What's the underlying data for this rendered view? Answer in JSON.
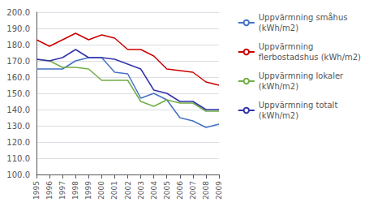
{
  "chart_data": {
    "type": "line",
    "categories": [
      "1995",
      "1996",
      "1997",
      "1998",
      "1999",
      "2000",
      "2001",
      "2002",
      "2003",
      "2004",
      "2005",
      "2006",
      "2007",
      "2008",
      "2009"
    ],
    "series": [
      {
        "name": "Uppvärmning småhus\n(kWh/m2)",
        "color": "#4472C4",
        "values": [
          165,
          165,
          165,
          170,
          172,
          172,
          163,
          162,
          147,
          150,
          146,
          135,
          133,
          129,
          131
        ]
      },
      {
        "name": "Uppvärmning\nflerbostadshus (kWh/m2)",
        "color": "#CC0000",
        "values": [
          183,
          179,
          183,
          187,
          183,
          186,
          184,
          177,
          177,
          173,
          165,
          164,
          163,
          157,
          155
        ]
      },
      {
        "name": "Uppvärmning lokaler\n(kWh/m2)",
        "color": "#70AD47",
        "values": [
          171,
          170,
          166,
          166,
          165,
          158,
          158,
          158,
          145,
          142,
          146,
          144,
          144,
          139,
          139
        ]
      },
      {
        "name": "Uppvärmning totalt\n(kWh/m2)",
        "color": "#3333AA",
        "values": [
          171,
          170,
          172,
          177,
          172,
          172,
          171,
          168,
          165,
          152,
          150,
          145,
          145,
          140,
          140
        ]
      }
    ],
    "ylim": [
      100.0,
      200.0
    ],
    "yticks": [
      {
        "value": 100,
        "label": "100.0"
      },
      {
        "value": 110,
        "label": "110.0"
      },
      {
        "value": 120,
        "label": "120.0"
      },
      {
        "value": 130,
        "label": "130.0"
      },
      {
        "value": 140,
        "label": "140.0"
      },
      {
        "value": 150,
        "label": "150.0"
      },
      {
        "value": 160,
        "label": "160.0"
      },
      {
        "value": 170,
        "label": "170.0"
      },
      {
        "value": 180,
        "label": "180.0"
      },
      {
        "value": 190,
        "label": "190.0"
      },
      {
        "value": 200,
        "label": "200.0"
      }
    ],
    "grid": true,
    "legend": "right"
  }
}
